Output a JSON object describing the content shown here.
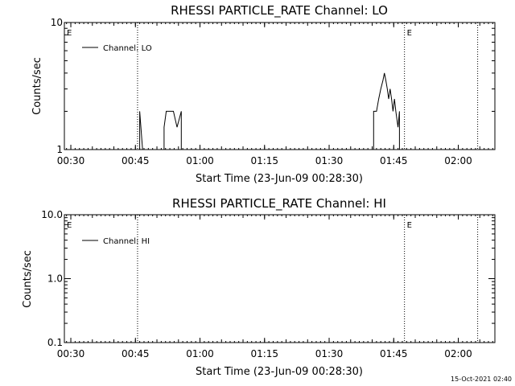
{
  "footer": {
    "timestamp": "15-Oct-2021 02:40"
  },
  "chart_data": [
    {
      "type": "line",
      "title": "RHESSI PARTICLE_RATE Channel: LO",
      "xlabel": "Start Time (23-Jun-09 00:28:30)",
      "ylabel": "Counts/sec",
      "yscale": "log",
      "ylim": [
        1,
        10
      ],
      "y_tick_labels": [
        "1",
        "10"
      ],
      "x_tick_labels": [
        "00:30",
        "00:45",
        "01:00",
        "01:15",
        "01:30",
        "01:45",
        "02:00"
      ],
      "legend": {
        "placement": "top-left",
        "entries": [
          "Channel: LO"
        ]
      },
      "event_markers": [
        {
          "label": "E",
          "time": "00:28:30"
        },
        {
          "label": "",
          "time": "00:45:30"
        },
        {
          "label": "E",
          "time": "01:47:30"
        },
        {
          "label": "",
          "time": "02:04:30"
        }
      ],
      "series": [
        {
          "name": "Channel: LO",
          "color": "#000000",
          "x": [
            "00:45:15",
            "00:46:00",
            "00:46:00",
            "00:46:40",
            "00:47:00",
            "00:51:40",
            "00:51:40",
            "00:52:10",
            "00:52:40",
            "00:53:50",
            "00:54:40",
            "00:55:40",
            "00:55:40",
            "01:40:20",
            "01:40:20",
            "01:41:00",
            "01:41:30",
            "01:42:00",
            "01:42:30",
            "01:42:50",
            "01:43:10",
            "01:43:30",
            "01:43:50",
            "01:44:10",
            "01:44:30",
            "01:44:50",
            "01:45:10",
            "01:45:30",
            "01:46:00",
            "01:46:20",
            "01:46:20"
          ],
          "y": [
            1,
            1,
            2,
            1,
            1,
            1,
            1.5,
            2,
            2,
            2,
            1.5,
            2,
            1,
            1,
            2,
            2,
            2.5,
            3,
            3.5,
            4,
            3.5,
            3,
            2.5,
            3,
            2.5,
            2,
            2.5,
            2,
            1.5,
            2,
            1
          ]
        }
      ]
    },
    {
      "type": "line",
      "title": "RHESSI PARTICLE_RATE Channel: HI",
      "xlabel": "Start Time (23-Jun-09 00:28:30)",
      "ylabel": "Counts/sec",
      "yscale": "log",
      "ylim": [
        0.1,
        10
      ],
      "y_tick_labels": [
        "0.1",
        "1.0",
        "10.0"
      ],
      "x_tick_labels": [
        "00:30",
        "00:45",
        "01:00",
        "01:15",
        "01:30",
        "01:45",
        "02:00"
      ],
      "legend": {
        "placement": "top-left",
        "entries": [
          "Channel: HI"
        ]
      },
      "event_markers": [
        {
          "label": "E",
          "time": "00:28:30"
        },
        {
          "label": "",
          "time": "00:45:30"
        },
        {
          "label": "E",
          "time": "01:47:30"
        },
        {
          "label": "",
          "time": "02:04:30"
        }
      ],
      "series": [
        {
          "name": "Channel: HI",
          "color": "#000000",
          "x": [],
          "y": []
        }
      ]
    }
  ]
}
